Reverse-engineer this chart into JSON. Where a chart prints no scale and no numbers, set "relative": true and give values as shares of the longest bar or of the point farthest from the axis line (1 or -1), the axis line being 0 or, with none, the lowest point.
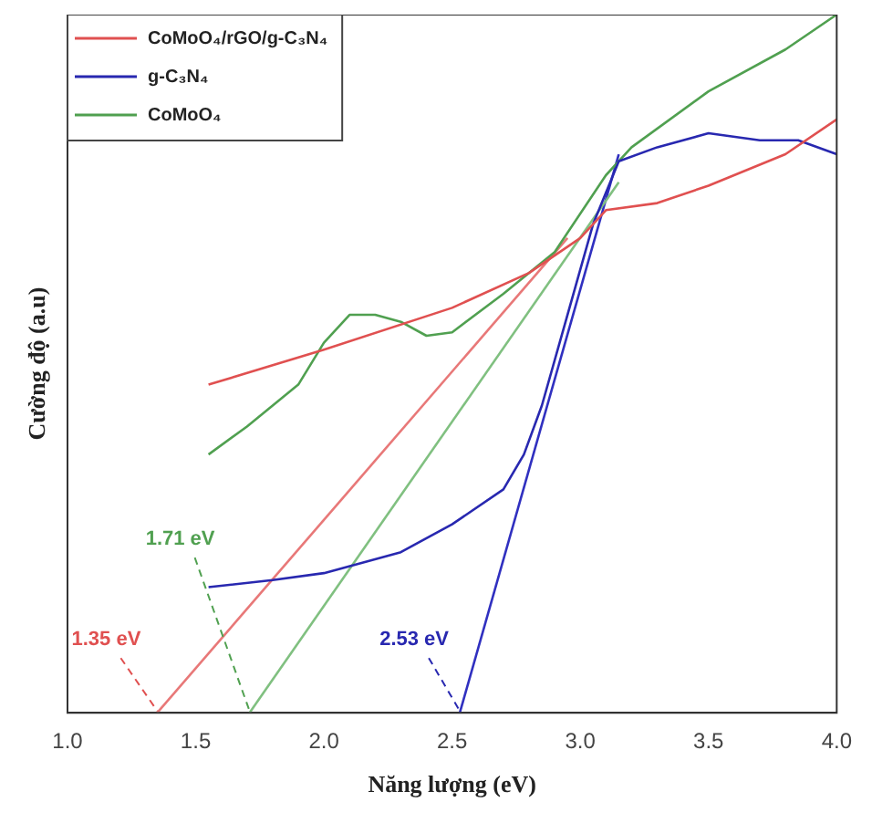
{
  "chart_data": {
    "type": "line",
    "relative": true,
    "xlabel": "Năng lượng (eV)",
    "ylabel": "Cường độ (a.u)",
    "xlim": [
      1.0,
      4.0
    ],
    "xticks": [
      {
        "value": 1,
        "label": "1.0"
      },
      {
        "value": 1.5,
        "label": "1.5"
      },
      {
        "value": 2,
        "label": "2.0"
      },
      {
        "value": 2.5,
        "label": "2.5"
      },
      {
        "value": 3,
        "label": "3.0"
      },
      {
        "value": 3.5,
        "label": "3.5"
      },
      {
        "value": 4,
        "label": "4.0"
      }
    ],
    "legend": "top left",
    "grid": false,
    "marker": "none",
    "line_style": "solid",
    "series": [
      {
        "name": "CoMoO₄/rGO/g-C₃N₄",
        "color": "#e05050",
        "x": [
          1.55,
          2.0,
          2.5,
          2.8,
          3.0,
          3.1,
          3.3,
          3.5,
          3.8,
          4.0
        ],
        "values": [
          0.47,
          0.52,
          0.58,
          0.63,
          0.68,
          0.72,
          0.73,
          0.755,
          0.8,
          0.85
        ]
      },
      {
        "name": "g-C₃N₄",
        "color": "#2828b0",
        "x": [
          1.55,
          1.8,
          2.0,
          2.3,
          2.5,
          2.7,
          2.78,
          2.85,
          2.95,
          3.05,
          3.15,
          3.3,
          3.5,
          3.7,
          3.85,
          4.0
        ],
        "values": [
          0.18,
          0.19,
          0.2,
          0.23,
          0.27,
          0.32,
          0.37,
          0.44,
          0.57,
          0.7,
          0.79,
          0.81,
          0.83,
          0.82,
          0.82,
          0.8
        ]
      },
      {
        "name": "CoMoO₄",
        "color": "#50a050",
        "x": [
          1.55,
          1.7,
          1.9,
          2.0,
          2.1,
          2.2,
          2.3,
          2.4,
          2.5,
          2.7,
          2.9,
          3.1,
          3.2,
          3.5,
          3.8,
          4.0
        ],
        "values": [
          0.37,
          0.41,
          0.47,
          0.53,
          0.57,
          0.57,
          0.56,
          0.54,
          0.545,
          0.6,
          0.66,
          0.77,
          0.81,
          0.89,
          0.95,
          1
        ]
      },
      {
        "color": "#e87878",
        "x": [
          1.35,
          2.95
        ],
        "values": [
          0,
          0.68
        ]
      },
      {
        "color": "#80c080",
        "x": [
          1.71,
          3.15
        ],
        "values": [
          0,
          0.76
        ]
      },
      {
        "color": "#3030c0",
        "x": [
          2.53,
          3.15
        ],
        "values": [
          0,
          0.8
        ]
      }
    ],
    "annotations": [
      {
        "text": "1.35 eV",
        "x": 1.35,
        "y": 0
      },
      {
        "text": "1.71 eV",
        "x": 1.71,
        "y": 0
      },
      {
        "text": "2.53 eV",
        "x": 2.53,
        "y": 0
      }
    ]
  }
}
